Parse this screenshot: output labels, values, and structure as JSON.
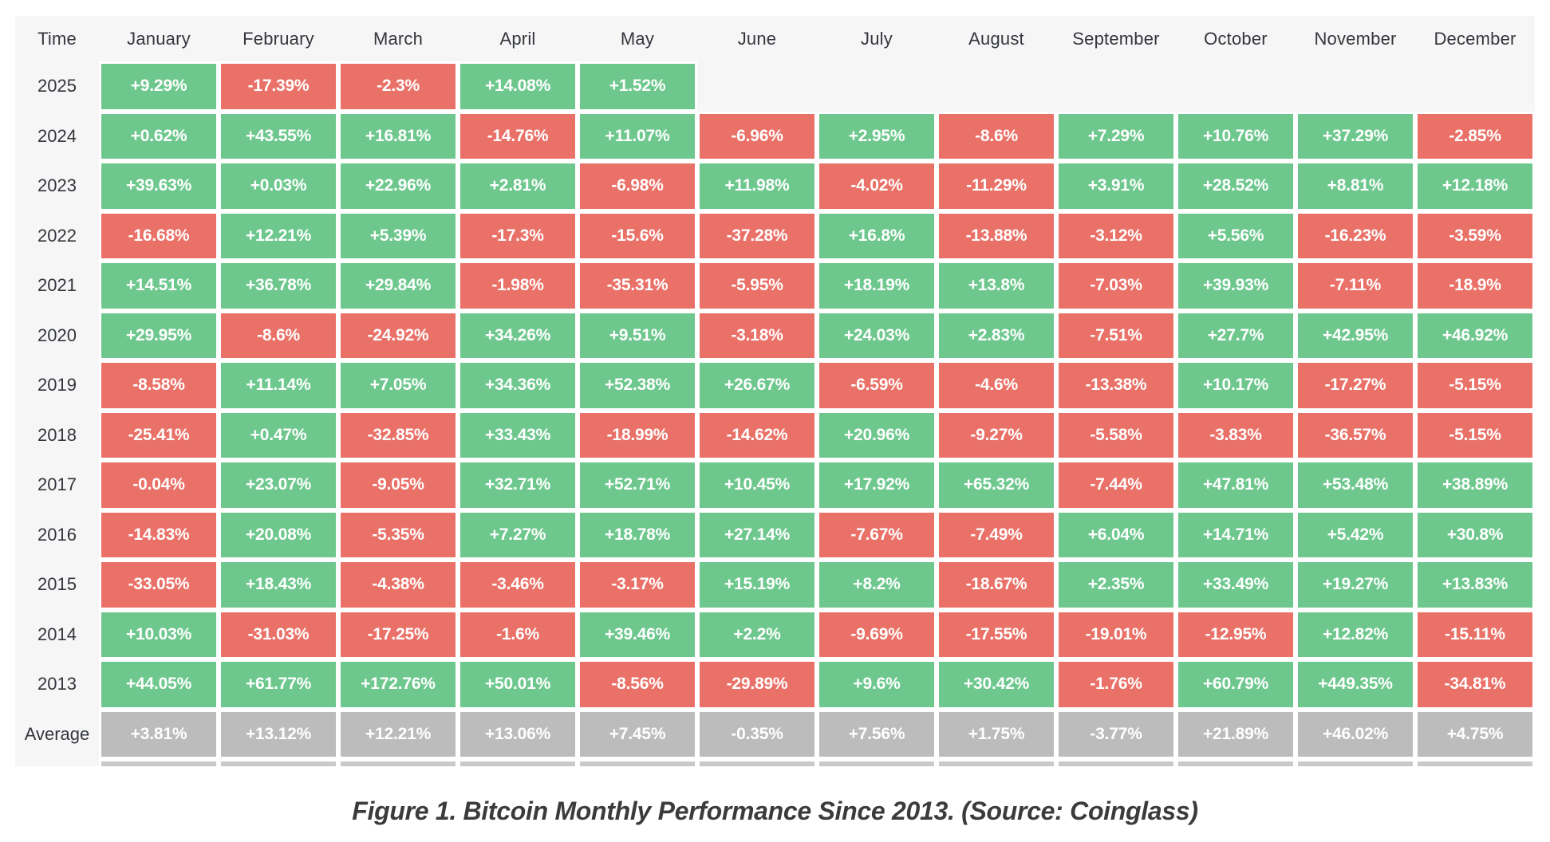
{
  "caption": "Figure 1. Bitcoin Monthly Performance Since 2013. (Source: Coinglass)",
  "colors": {
    "positive": "#6ec88e",
    "negative": "#ea7168",
    "average": "#bcbcbc",
    "partial_row": "#c9c9c9",
    "table_background": "#f6f6f7",
    "label_text": "#33363c",
    "cell_text": "#ffffff"
  },
  "chart_data": {
    "type": "heatmap",
    "title": "Bitcoin Monthly Performance Since 2013",
    "corner_label": "Time",
    "value_unit": "%",
    "legend_position": "none",
    "grid": false,
    "partial_row_visible_at_bottom": true,
    "columns": [
      "January",
      "February",
      "March",
      "April",
      "May",
      "June",
      "July",
      "August",
      "September",
      "October",
      "November",
      "December"
    ],
    "rows": [
      {
        "label": "2025",
        "type": "year",
        "values": [
          9.29,
          -17.39,
          -2.3,
          14.08,
          1.52,
          null,
          null,
          null,
          null,
          null,
          null,
          null
        ]
      },
      {
        "label": "2024",
        "type": "year",
        "values": [
          0.62,
          43.55,
          16.81,
          -14.76,
          11.07,
          -6.96,
          2.95,
          -8.6,
          7.29,
          10.76,
          37.29,
          -2.85
        ]
      },
      {
        "label": "2023",
        "type": "year",
        "values": [
          39.63,
          0.03,
          22.96,
          2.81,
          -6.98,
          11.98,
          -4.02,
          -11.29,
          3.91,
          28.52,
          8.81,
          12.18
        ]
      },
      {
        "label": "2022",
        "type": "year",
        "values": [
          -16.68,
          12.21,
          5.39,
          -17.3,
          -15.6,
          -37.28,
          16.8,
          -13.88,
          -3.12,
          5.56,
          -16.23,
          -3.59
        ]
      },
      {
        "label": "2021",
        "type": "year",
        "values": [
          14.51,
          36.78,
          29.84,
          -1.98,
          -35.31,
          -5.95,
          18.19,
          13.8,
          -7.03,
          39.93,
          -7.11,
          -18.9
        ]
      },
      {
        "label": "2020",
        "type": "year",
        "values": [
          29.95,
          -8.6,
          -24.92,
          34.26,
          9.51,
          -3.18,
          24.03,
          2.83,
          -7.51,
          27.7,
          42.95,
          46.92
        ]
      },
      {
        "label": "2019",
        "type": "year",
        "values": [
          -8.58,
          11.14,
          7.05,
          34.36,
          52.38,
          26.67,
          -6.59,
          -4.6,
          -13.38,
          10.17,
          -17.27,
          -5.15
        ]
      },
      {
        "label": "2018",
        "type": "year",
        "values": [
          -25.41,
          0.47,
          -32.85,
          33.43,
          -18.99,
          -14.62,
          20.96,
          -9.27,
          -5.58,
          -3.83,
          -36.57,
          -5.15
        ]
      },
      {
        "label": "2017",
        "type": "year",
        "values": [
          -0.04,
          23.07,
          -9.05,
          32.71,
          52.71,
          10.45,
          17.92,
          65.32,
          -7.44,
          47.81,
          53.48,
          38.89
        ]
      },
      {
        "label": "2016",
        "type": "year",
        "values": [
          -14.83,
          20.08,
          -5.35,
          7.27,
          18.78,
          27.14,
          -7.67,
          -7.49,
          6.04,
          14.71,
          5.42,
          30.8
        ]
      },
      {
        "label": "2015",
        "type": "year",
        "values": [
          -33.05,
          18.43,
          -4.38,
          -3.46,
          -3.17,
          15.19,
          8.2,
          -18.67,
          2.35,
          33.49,
          19.27,
          13.83
        ]
      },
      {
        "label": "2014",
        "type": "year",
        "values": [
          10.03,
          -31.03,
          -17.25,
          -1.6,
          39.46,
          2.2,
          -9.69,
          -17.55,
          -19.01,
          -12.95,
          12.82,
          -15.11
        ]
      },
      {
        "label": "2013",
        "type": "year",
        "values": [
          44.05,
          61.77,
          172.76,
          50.01,
          -8.56,
          -29.89,
          9.6,
          30.42,
          -1.76,
          60.79,
          449.35,
          -34.81
        ]
      },
      {
        "label": "Average",
        "type": "average",
        "values": [
          3.81,
          13.12,
          12.21,
          13.06,
          7.45,
          -0.35,
          7.56,
          1.75,
          -3.77,
          21.89,
          46.02,
          4.75
        ]
      }
    ]
  }
}
